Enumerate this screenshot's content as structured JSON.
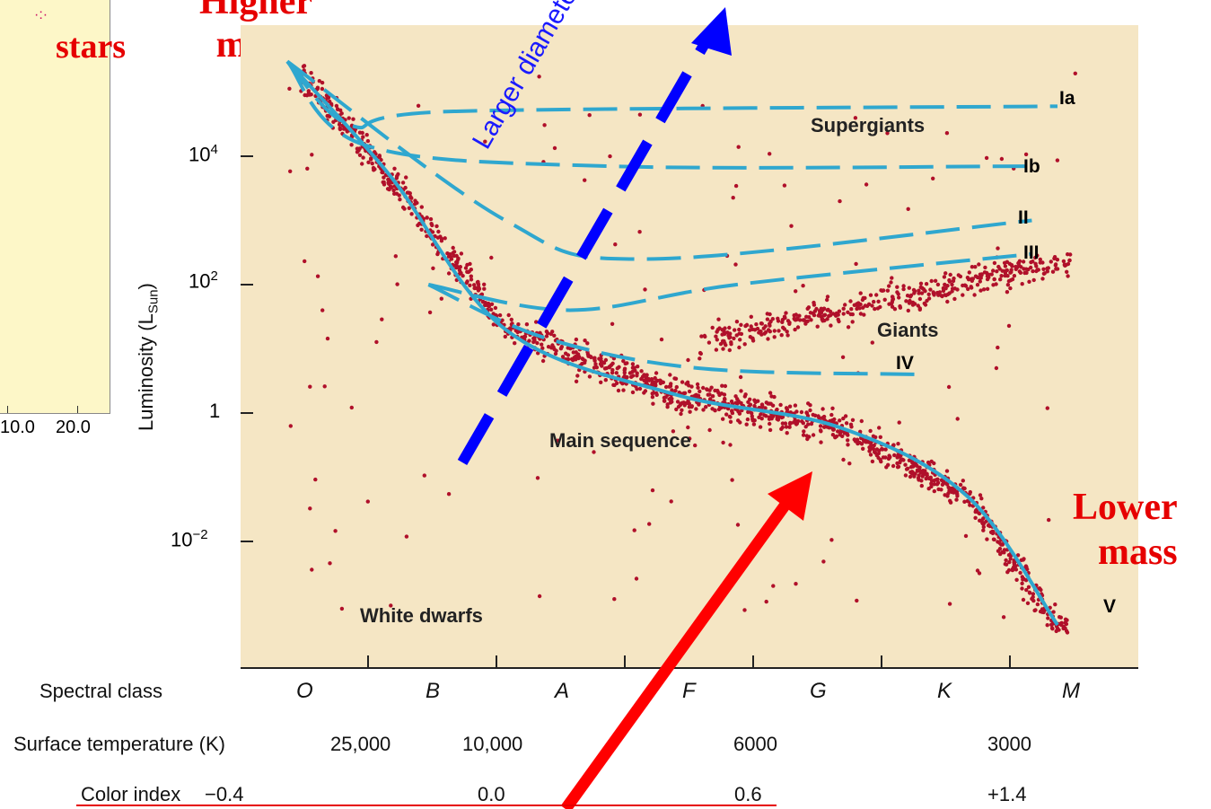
{
  "left_panel": {
    "tick_labels": [
      "10.0",
      "20.0"
    ],
    "stars_label": "stars"
  },
  "annotations": {
    "higher_mass": "Higher\nmass",
    "lower_mass": "Lower\nmass",
    "larger_diameter": "Larger diameter",
    "colors": {
      "red": "#e60000",
      "blue": "#0000ff",
      "curve": "#2fa7cf",
      "dots": "#b0102a",
      "plot_bg": "#f5e6c4"
    }
  },
  "chart_data": {
    "type": "scatter",
    "y_label_main": "Luminosity (L",
    "y_label_sub": "Sun",
    "y_label_close": ")",
    "y_scale": "log",
    "y_ticks": [
      {
        "value": 0.01,
        "base": "10",
        "exp": "−2"
      },
      {
        "value": 1,
        "base": "1",
        "exp": ""
      },
      {
        "value": 100,
        "base": "10",
        "exp": "2"
      },
      {
        "value": 10000,
        "base": "10",
        "exp": "4"
      }
    ],
    "x_axis": {
      "spectral_class_label": "Spectral class",
      "spectral_classes": [
        "O",
        "B",
        "A",
        "F",
        "G",
        "K",
        "M"
      ],
      "temperature_label": "Surface temperature (K)",
      "temperatures": [
        "25,000",
        "10,000",
        "6000",
        "3000"
      ],
      "color_index_label": "Color index",
      "color_indices": [
        "−0.4",
        "0.0",
        "0.6",
        "+1.4"
      ]
    },
    "series": [
      {
        "name": "Ia",
        "values": [
          [
            0.0,
            300000
          ],
          [
            0.5,
            30000
          ],
          [
            1.3,
            50000
          ],
          [
            6.0,
            60000
          ]
        ]
      },
      {
        "name": "Ib",
        "values": [
          [
            0.0,
            300000
          ],
          [
            0.6,
            15000
          ],
          [
            2.5,
            7000
          ],
          [
            5.8,
            7000
          ]
        ]
      },
      {
        "name": "II",
        "values": [
          [
            0.0,
            300000
          ],
          [
            1.7,
            1000
          ],
          [
            2.8,
            250
          ],
          [
            5.8,
            1000
          ]
        ]
      },
      {
        "name": "III",
        "values": [
          [
            1.1,
            100
          ],
          [
            2.2,
            40
          ],
          [
            3.5,
            100
          ],
          [
            5.8,
            300
          ]
        ]
      },
      {
        "name": "IV",
        "values": [
          [
            1.1,
            100
          ],
          [
            2.0,
            15
          ],
          [
            3.2,
            5
          ],
          [
            4.9,
            4
          ]
        ]
      },
      {
        "name": "V",
        "values": [
          [
            0.0,
            300000
          ],
          [
            0.8,
            5000
          ],
          [
            1.7,
            20
          ],
          [
            3.0,
            2
          ],
          [
            4.3,
            0.6
          ],
          [
            5.3,
            0.05
          ],
          [
            6.0,
            0.0005
          ]
        ]
      }
    ],
    "region_labels": [
      "Supergiants",
      "Giants",
      "Main sequence",
      "White dwarfs"
    ]
  }
}
